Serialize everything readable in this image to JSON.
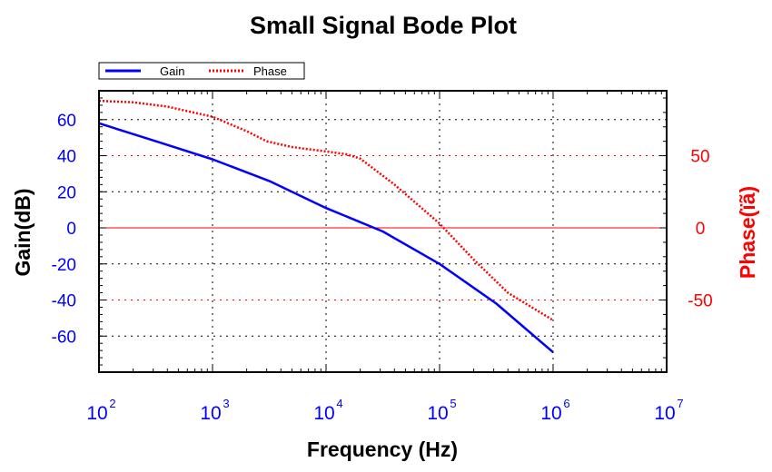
{
  "chart_data": {
    "type": "line",
    "title": "Small Signal Bode Plot",
    "xlabel": "Frequency (Hz)",
    "ylabel_left": "Gain(dB)",
    "ylabel_right": "Phase(ïã)",
    "x_scale": "log",
    "xlim": [
      100,
      10000000
    ],
    "ylim_left": [
      -80,
      76
    ],
    "ylim_right": [
      -100,
      95
    ],
    "x_ticks": [
      {
        "base": "10",
        "exp": "2",
        "value": 100
      },
      {
        "base": "10",
        "exp": "3",
        "value": 1000
      },
      {
        "base": "10",
        "exp": "4",
        "value": 10000
      },
      {
        "base": "10",
        "exp": "5",
        "value": 100000
      },
      {
        "base": "10",
        "exp": "6",
        "value": 1000000
      },
      {
        "base": "10",
        "exp": "7",
        "value": 10000000
      }
    ],
    "y_left_ticks": [
      60,
      40,
      20,
      0,
      -20,
      -40,
      -60
    ],
    "y_right_ticks": [
      50,
      0,
      -50
    ],
    "grid": true,
    "legend": {
      "position": "top-left",
      "entries": [
        "Gain",
        "Phase"
      ]
    },
    "series": [
      {
        "name": "Gain",
        "axis": "left",
        "color": "#0000ff",
        "style": "solid",
        "x": [
          100,
          316,
          1000,
          3162,
          10000,
          31623,
          100000,
          316228,
          1000000
        ],
        "y": [
          58,
          48,
          38,
          26,
          11,
          -2,
          -20,
          -42,
          -69
        ]
      },
      {
        "name": "Phase",
        "axis": "right",
        "color": "#ff0000",
        "style": "dotted",
        "x": [
          100,
          200,
          400,
          1000,
          2000,
          3000,
          5000,
          10000,
          15000,
          20000,
          40000,
          100000,
          200000,
          400000,
          1000000
        ],
        "y": [
          88,
          87,
          84,
          77,
          67,
          60,
          56,
          53,
          51,
          48,
          30,
          3,
          -22,
          -45,
          -64
        ]
      }
    ],
    "reference_lines": [
      {
        "axis": "left",
        "value": 0,
        "color": "#ff0000"
      },
      {
        "axis": "right",
        "value": 50,
        "color": "#ff0000",
        "style": "dotted"
      },
      {
        "axis": "right",
        "value": -50,
        "color": "#ff0000",
        "style": "dotted"
      }
    ]
  },
  "colors": {
    "left_axis": "#0000ff",
    "right_axis": "#ff0000",
    "x_axis": "#0000ff",
    "frame": "#000000",
    "grid": "#000000"
  }
}
